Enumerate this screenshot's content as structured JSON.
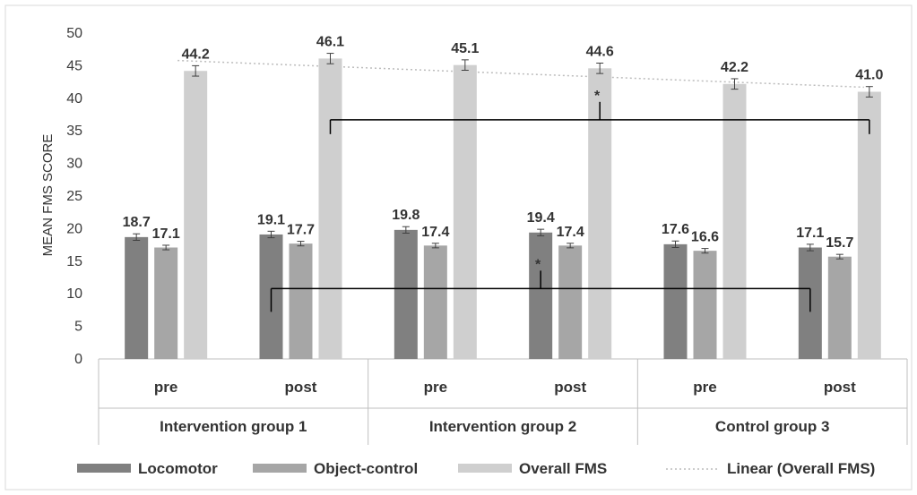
{
  "chart_data": {
    "type": "bar",
    "ylabel": "MEAN FMS SCORE",
    "ylim": [
      0,
      50
    ],
    "yticks": [
      0,
      5,
      10,
      15,
      20,
      25,
      30,
      35,
      40,
      45,
      50
    ],
    "grid": false,
    "legend_position": "bottom",
    "groups": [
      "Intervention group  1",
      "Intervention group 2",
      "Control group 3"
    ],
    "categories": [
      "pre",
      "post",
      "pre",
      "post",
      "pre",
      "post"
    ],
    "series": [
      {
        "name": "Locomotor",
        "color": "#808080",
        "values": [
          18.7,
          19.1,
          19.8,
          19.4,
          17.6,
          17.1
        ],
        "labels": [
          "18.7",
          "19.1",
          "19.8",
          "19.4",
          "17.6",
          "17.1"
        ]
      },
      {
        "name": "Object-control",
        "color": "#a6a6a6",
        "values": [
          17.1,
          17.7,
          17.4,
          17.4,
          16.6,
          15.7
        ],
        "labels": [
          "17.1",
          "17.7",
          "17.4",
          "17.4",
          "16.6",
          "15.7"
        ]
      },
      {
        "name": "Overall FMS",
        "color": "#cfcfcf",
        "values": [
          44.2,
          46.1,
          45.1,
          44.6,
          42.2,
          41.0
        ],
        "labels": [
          "44.2",
          "46.1",
          "45.1",
          "44.6",
          "42.2",
          "41.0"
        ]
      }
    ],
    "error_bars": {
      "Locomotor": 0.5,
      "Object-control": 0.35,
      "Overall FMS": 0.8
    },
    "trendline": {
      "name": "Linear (Overall FMS)",
      "type": "linear",
      "series": "Overall FMS",
      "start": 45.8,
      "end": 41.7
    },
    "significance": [
      {
        "label": "*",
        "from": "Intervention group  1 post",
        "to": "Control group 3 post",
        "series": "Overall FMS",
        "y": 36.7
      },
      {
        "label": "*",
        "from": "Intervention group  1 post",
        "to": "Control group 3 post",
        "series": "Locomotor",
        "y": 10.8
      }
    ]
  }
}
